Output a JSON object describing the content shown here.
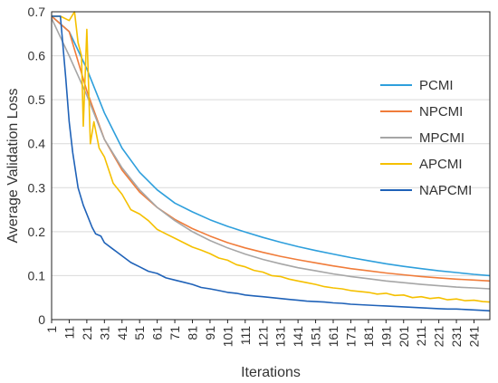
{
  "chart_data": {
    "type": "line",
    "title": "",
    "xlabel": "Iterations",
    "ylabel": "Average Validation Loss",
    "xlim": [
      1,
      250
    ],
    "ylim": [
      0,
      0.7
    ],
    "y_ticks": [
      "0",
      "0.1",
      "0.2",
      "0.3",
      "0.4",
      "0.5",
      "0.6",
      "0.7"
    ],
    "x_ticks": [
      "1",
      "11",
      "21",
      "31",
      "41",
      "51",
      "61",
      "71",
      "81",
      "91",
      "101",
      "111",
      "121",
      "131",
      "141",
      "151",
      "161",
      "171",
      "181",
      "191",
      "201",
      "211",
      "221",
      "231",
      "241"
    ],
    "grid": true,
    "legend_position": "right",
    "series": [
      {
        "name": "PCMI",
        "color": "#2e9fdc",
        "x": [
          1,
          11,
          21,
          31,
          41,
          51,
          61,
          71,
          81,
          91,
          101,
          111,
          121,
          131,
          141,
          151,
          161,
          171,
          181,
          191,
          201,
          211,
          221,
          231,
          241,
          250
        ],
        "values": [
          0.69,
          0.655,
          0.57,
          0.47,
          0.39,
          0.335,
          0.295,
          0.265,
          0.245,
          0.227,
          0.212,
          0.199,
          0.187,
          0.176,
          0.166,
          0.157,
          0.149,
          0.141,
          0.134,
          0.127,
          0.121,
          0.116,
          0.111,
          0.107,
          0.103,
          0.1
        ]
      },
      {
        "name": "NPCMI",
        "color": "#f07c3a",
        "x": [
          1,
          11,
          21,
          31,
          41,
          51,
          61,
          71,
          81,
          91,
          101,
          111,
          121,
          131,
          141,
          151,
          161,
          171,
          181,
          191,
          201,
          211,
          221,
          231,
          241,
          250
        ],
        "values": [
          0.69,
          0.655,
          0.52,
          0.41,
          0.34,
          0.29,
          0.255,
          0.228,
          0.207,
          0.19,
          0.175,
          0.163,
          0.153,
          0.144,
          0.136,
          0.129,
          0.122,
          0.116,
          0.111,
          0.106,
          0.102,
          0.098,
          0.095,
          0.092,
          0.09,
          0.088
        ]
      },
      {
        "name": "MPCMI",
        "color": "#a6a6a6",
        "x": [
          1,
          11,
          21,
          31,
          41,
          51,
          61,
          71,
          81,
          91,
          101,
          111,
          121,
          131,
          141,
          151,
          161,
          171,
          181,
          191,
          201,
          211,
          221,
          231,
          241,
          250
        ],
        "values": [
          0.685,
          0.6,
          0.51,
          0.41,
          0.345,
          0.295,
          0.255,
          0.225,
          0.2,
          0.18,
          0.163,
          0.149,
          0.137,
          0.127,
          0.118,
          0.111,
          0.104,
          0.098,
          0.093,
          0.088,
          0.084,
          0.08,
          0.077,
          0.074,
          0.072,
          0.07
        ]
      },
      {
        "name": "APCMI",
        "color": "#f5c000",
        "x": [
          1,
          6,
          11,
          14,
          16,
          18,
          19,
          21,
          23,
          25,
          28,
          31,
          36,
          41,
          46,
          51,
          56,
          61,
          66,
          71,
          76,
          81,
          86,
          91,
          96,
          101,
          106,
          111,
          116,
          121,
          126,
          131,
          136,
          141,
          146,
          151,
          156,
          161,
          166,
          171,
          176,
          181,
          186,
          191,
          196,
          201,
          206,
          211,
          216,
          221,
          226,
          231,
          236,
          241,
          246,
          250
        ],
        "values": [
          0.69,
          0.69,
          0.68,
          0.7,
          0.63,
          0.6,
          0.44,
          0.66,
          0.4,
          0.45,
          0.39,
          0.37,
          0.31,
          0.285,
          0.25,
          0.24,
          0.225,
          0.205,
          0.195,
          0.185,
          0.175,
          0.165,
          0.158,
          0.15,
          0.14,
          0.135,
          0.125,
          0.12,
          0.112,
          0.108,
          0.1,
          0.098,
          0.092,
          0.088,
          0.084,
          0.08,
          0.075,
          0.072,
          0.07,
          0.066,
          0.064,
          0.062,
          0.058,
          0.06,
          0.055,
          0.056,
          0.05,
          0.052,
          0.048,
          0.05,
          0.045,
          0.047,
          0.043,
          0.044,
          0.041,
          0.04
        ]
      },
      {
        "name": "NAPCMI",
        "color": "#1f62b8",
        "x": [
          1,
          6,
          9,
          11,
          13,
          16,
          19,
          21,
          24,
          26,
          29,
          31,
          36,
          41,
          46,
          51,
          56,
          61,
          66,
          71,
          76,
          81,
          86,
          91,
          96,
          101,
          106,
          111,
          116,
          121,
          126,
          131,
          136,
          141,
          146,
          151,
          156,
          161,
          166,
          171,
          176,
          181,
          186,
          191,
          196,
          201,
          206,
          211,
          216,
          221,
          226,
          231,
          236,
          241,
          246,
          250
        ],
        "values": [
          0.69,
          0.69,
          0.55,
          0.45,
          0.38,
          0.3,
          0.26,
          0.24,
          0.21,
          0.195,
          0.19,
          0.175,
          0.16,
          0.145,
          0.13,
          0.12,
          0.11,
          0.105,
          0.095,
          0.09,
          0.085,
          0.08,
          0.073,
          0.07,
          0.066,
          0.062,
          0.06,
          0.056,
          0.054,
          0.052,
          0.05,
          0.048,
          0.046,
          0.044,
          0.042,
          0.041,
          0.04,
          0.038,
          0.037,
          0.035,
          0.034,
          0.033,
          0.032,
          0.031,
          0.03,
          0.029,
          0.028,
          0.027,
          0.026,
          0.025,
          0.024,
          0.024,
          0.023,
          0.022,
          0.021,
          0.02
        ]
      }
    ]
  }
}
